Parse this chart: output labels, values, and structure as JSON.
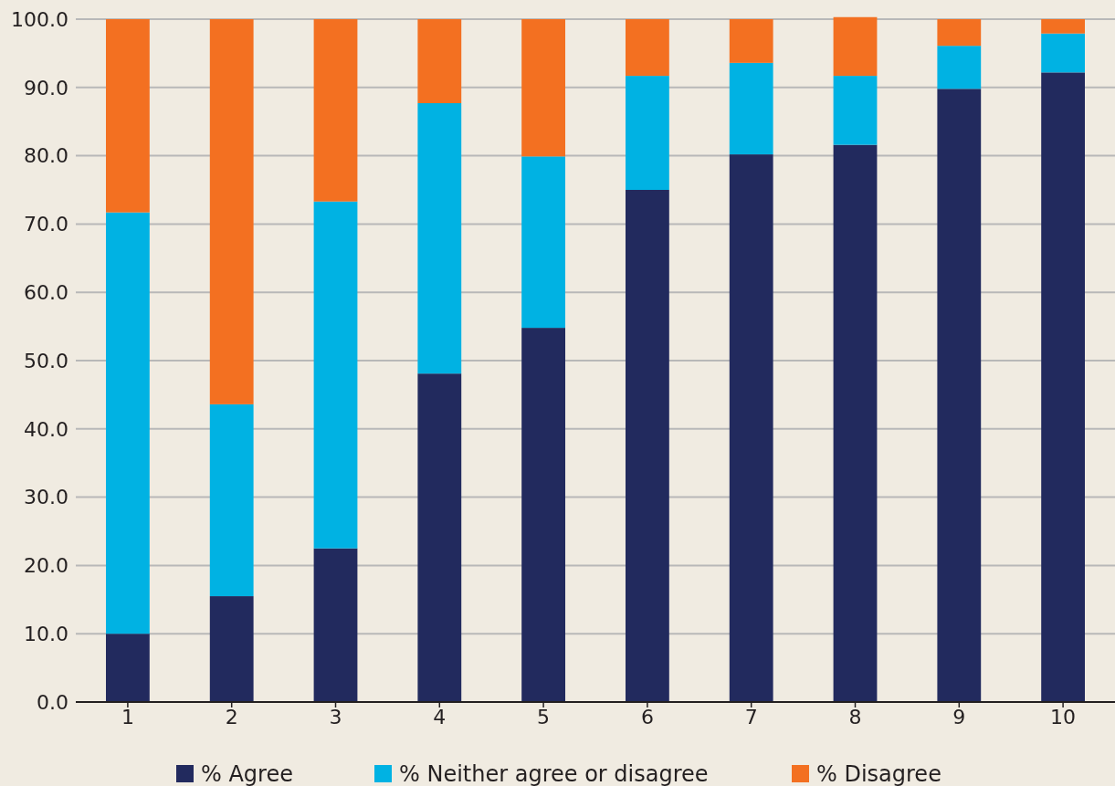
{
  "chart_data": {
    "type": "bar",
    "stacked": true,
    "categories": [
      "1",
      "2",
      "3",
      "4",
      "5",
      "6",
      "7",
      "8",
      "9",
      "10"
    ],
    "series": [
      {
        "name": "% Agree",
        "color": "#222a5e",
        "values": [
          10.0,
          15.5,
          22.5,
          48.1,
          54.8,
          75.0,
          80.2,
          81.6,
          89.8,
          92.2
        ]
      },
      {
        "name": "% Neither agree or disagree",
        "color": "#00b2e3",
        "values": [
          61.7,
          28.1,
          50.8,
          39.6,
          25.1,
          16.7,
          13.4,
          10.1,
          6.3,
          5.7
        ]
      },
      {
        "name": "% Disagree",
        "color": "#f37021",
        "values": [
          28.3,
          56.4,
          26.7,
          12.3,
          20.1,
          8.3,
          6.4,
          8.6,
          3.9,
          2.1
        ]
      }
    ],
    "ylim": [
      0,
      100
    ],
    "yticks": [
      {
        "value": 0,
        "label": "0.0"
      },
      {
        "value": 10,
        "label": "10.0"
      },
      {
        "value": 20,
        "label": "20.0"
      },
      {
        "value": 30,
        "label": "30.0"
      },
      {
        "value": 40,
        "label": "40.0"
      },
      {
        "value": 50,
        "label": "50.0"
      },
      {
        "value": 60,
        "label": "60.0"
      },
      {
        "value": 70,
        "label": "70.0"
      },
      {
        "value": 80,
        "label": "80.0"
      },
      {
        "value": 90,
        "label": "90.0"
      },
      {
        "value": 100,
        "label": "100.0"
      }
    ],
    "grid": "y",
    "legend": "bottom"
  }
}
